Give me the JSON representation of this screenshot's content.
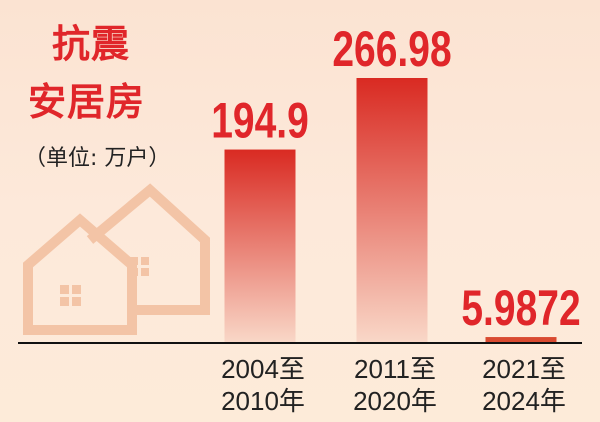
{
  "title_lines": [
    "抗震",
    "安居房"
  ],
  "unit": "（单位: 万户）",
  "colors": {
    "accent": "#e0262a",
    "bar_top": "#d92a22",
    "bar_bottom": "#f9d8c8",
    "axis": "#111111"
  },
  "chart_data": {
    "type": "bar",
    "title": "抗震安居房",
    "ylabel": "（单位: 万户）",
    "categories": [
      [
        "2004至",
        "2010年"
      ],
      [
        "2011至",
        "2020年"
      ],
      [
        "2021至",
        "2024年"
      ]
    ],
    "values": [
      194.9,
      266.98,
      5.9872
    ],
    "value_labels": [
      "194.9",
      "266.98",
      "5.9872"
    ],
    "ylim": [
      0,
      270
    ],
    "grid": false,
    "legend": "none"
  }
}
